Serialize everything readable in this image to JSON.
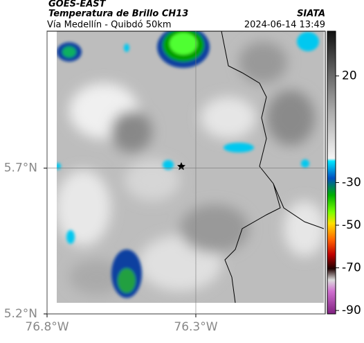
{
  "header": {
    "product": "GOES-EAST",
    "title": "Temperatura de Brillo CH13",
    "source": "SIATA",
    "subtitle": "Vía Medellín - Quibdó 50km",
    "datetime": "2024-06-14 13:49"
  },
  "map": {
    "xlim": [
      -76.8,
      -75.865
    ],
    "ylim": [
      5.2,
      6.17
    ],
    "xticks": [
      {
        "value": -76.8,
        "label": "76.8°W"
      },
      {
        "value": -76.3,
        "label": "76.3°W"
      }
    ],
    "yticks": [
      {
        "value": 5.2,
        "label": "5.2°N"
      },
      {
        "value": 5.7,
        "label": "5.7°N"
      }
    ],
    "grid": true,
    "colorbar": {
      "lim": [
        -91.6,
        41
      ],
      "ticks": [
        20,
        -30,
        -50,
        -70,
        -90
      ]
    }
  }
}
